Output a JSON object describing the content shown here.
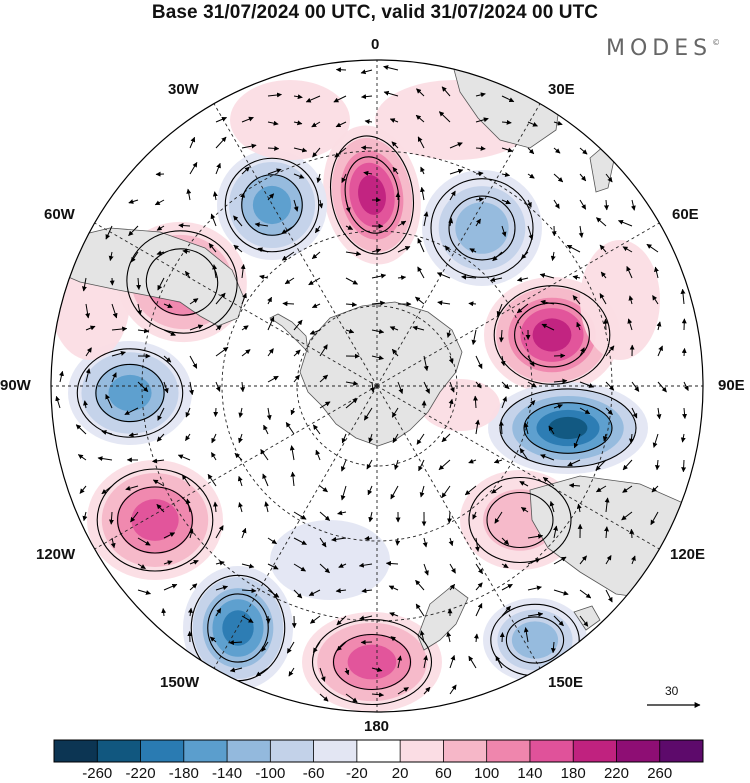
{
  "title": "Base 31/07/2024 00 UTC, valid 31/07/2024 00 UTC",
  "brand": "MODES",
  "brand_mark": "©",
  "longitude_labels": [
    {
      "id": "lon-0",
      "text": "0"
    },
    {
      "id": "lon-30e",
      "text": "30E"
    },
    {
      "id": "lon-60e",
      "text": "60E"
    },
    {
      "id": "lon-90e",
      "text": "90E"
    },
    {
      "id": "lon-120e",
      "text": "120E"
    },
    {
      "id": "lon-150e",
      "text": "150E"
    },
    {
      "id": "lon-180",
      "text": "180"
    },
    {
      "id": "lon-150w",
      "text": "150W"
    },
    {
      "id": "lon-120w",
      "text": "120W"
    },
    {
      "id": "lon-90w",
      "text": "90W"
    },
    {
      "id": "lon-60w",
      "text": "60W"
    },
    {
      "id": "lon-30w",
      "text": "30W"
    }
  ],
  "wind_reference_label": "30",
  "colorbar": {
    "boundaries": [
      "-260",
      "-220",
      "-180",
      "-140",
      "-100",
      "-60",
      "-20",
      "20",
      "60",
      "100",
      "140",
      "180",
      "220",
      "260"
    ],
    "colors": [
      "#0c3553",
      "#11577f",
      "#2a7bb2",
      "#5b9ecd",
      "#93b9dd",
      "#c3d2e9",
      "#e3e6f3",
      "#ffffff",
      "#fbdde4",
      "#f6b7c8",
      "#ef86ad",
      "#e0529a",
      "#c0227f",
      "#8e0e74",
      "#5d0a6b"
    ]
  },
  "continent_color": "#e6e6e6"
}
